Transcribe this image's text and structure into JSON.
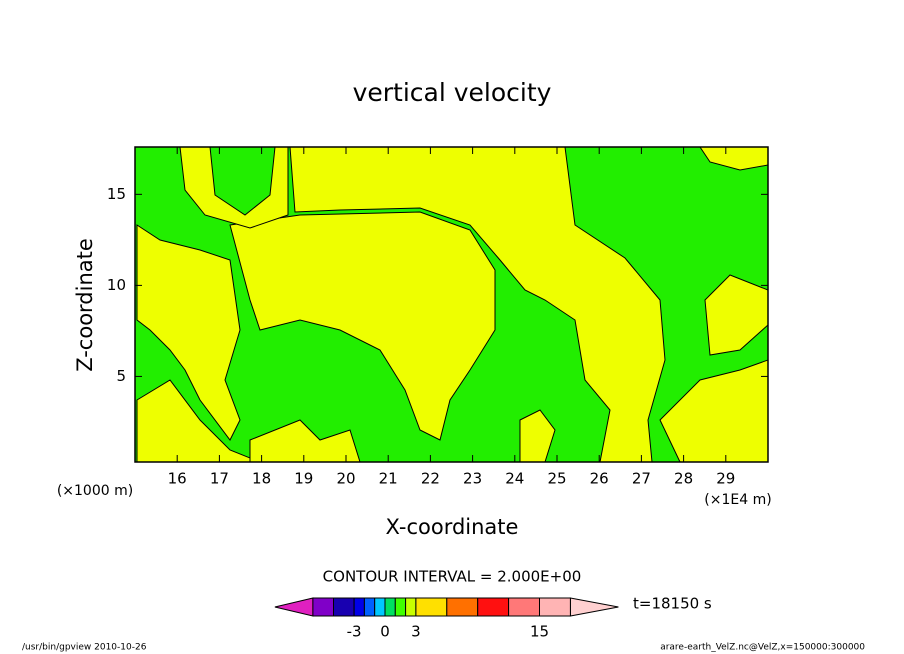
{
  "chart_data": {
    "type": "contour",
    "title": "vertical velocity",
    "x_label": "X-coordinate",
    "y_label": "Z-coordinate",
    "x_unit": "(×1E4 m)",
    "y_unit": "(×1000 m)",
    "xlim": [
      15,
      30
    ],
    "xticks": [
      16,
      17,
      18,
      19,
      20,
      21,
      22,
      23,
      24,
      25,
      26,
      27,
      28,
      29
    ],
    "ylim": [
      0.3,
      17.6
    ],
    "yticks": [
      5,
      10,
      15
    ],
    "contour_interval": "CONTOUR INTERVAL = 2.000E+00",
    "time_label": "t=18150 s",
    "colorbar": {
      "levels": [
        -7,
        -5,
        -3,
        -2,
        -1,
        0,
        1,
        2,
        3,
        6,
        9,
        12,
        15,
        18
      ],
      "colors": [
        "#8000c8",
        "#1800b0",
        "#0000e8",
        "#0060ff",
        "#00c8ff",
        "#00e060",
        "#40ff00",
        "#c8ff00",
        "#ffe000",
        "#ff7000",
        "#ff1010",
        "#ff7878",
        "#ffb4b4"
      ],
      "below_color": "#e020c0",
      "above_color": "#ffd0d0",
      "ticks": [
        -3,
        0,
        3,
        15
      ]
    }
  },
  "footer": {
    "left": "/usr/bin/gpview  2010-10-26",
    "right": "arare-earth_VelZ.nc@VelZ,x=150000:300000"
  }
}
